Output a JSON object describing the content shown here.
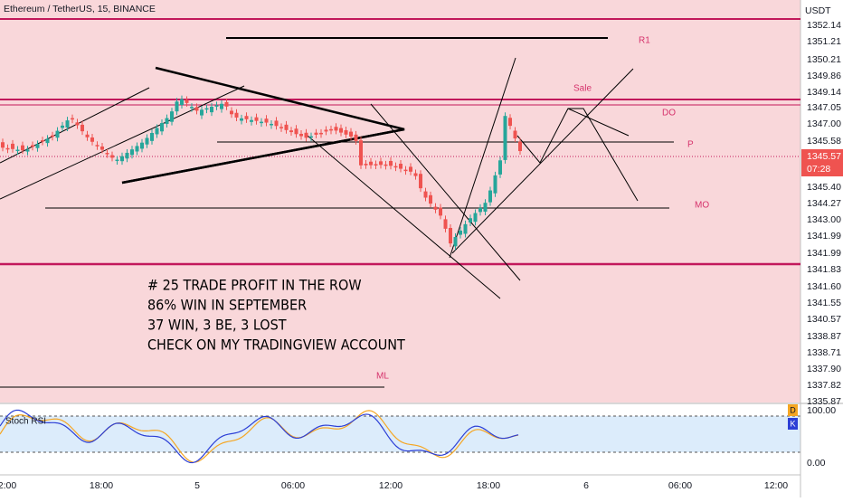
{
  "header": {
    "title": "Ethereum / TetherUS, 15, BINANCE",
    "currency": "USDT"
  },
  "price_axis": {
    "labels": [
      "1352.14",
      "1351.21",
      "1350.21",
      "1349.86",
      "1349.14",
      "1347.05",
      "1347.00",
      "1345.58",
      "1345.40",
      "1344.27",
      "1343.00",
      "1341.99",
      "1341.99",
      "1341.83",
      "1341.60",
      "1341.55",
      "1340.57",
      "1338.87",
      "1338.71",
      "1337.90",
      "1337.82",
      "1335.87"
    ]
  },
  "current_price": {
    "price": "1345.57",
    "countdown": "07:28"
  },
  "levels": {
    "r1": "R1",
    "sale": "Sale",
    "do": "DO",
    "p": "P",
    "mo": "MO",
    "ml": "ML"
  },
  "annotation": {
    "lines": [
      "# 25 TRADE PROFIT IN THE ROW",
      "86% WIN IN SEPTEMBER",
      "37 WIN, 3 BE, 3 LOST",
      "CHECK ON MY TRADINGVIEW  ACCOUNT"
    ]
  },
  "indicator": {
    "name": "Stoch RSI",
    "badges": [
      "D",
      "K"
    ],
    "scale": [
      "100.00",
      "0.00"
    ]
  },
  "time_axis": [
    "2:00",
    "18:00",
    "5",
    "06:00",
    "12:00",
    "18:00",
    "6",
    "06:00",
    "12:00"
  ]
}
